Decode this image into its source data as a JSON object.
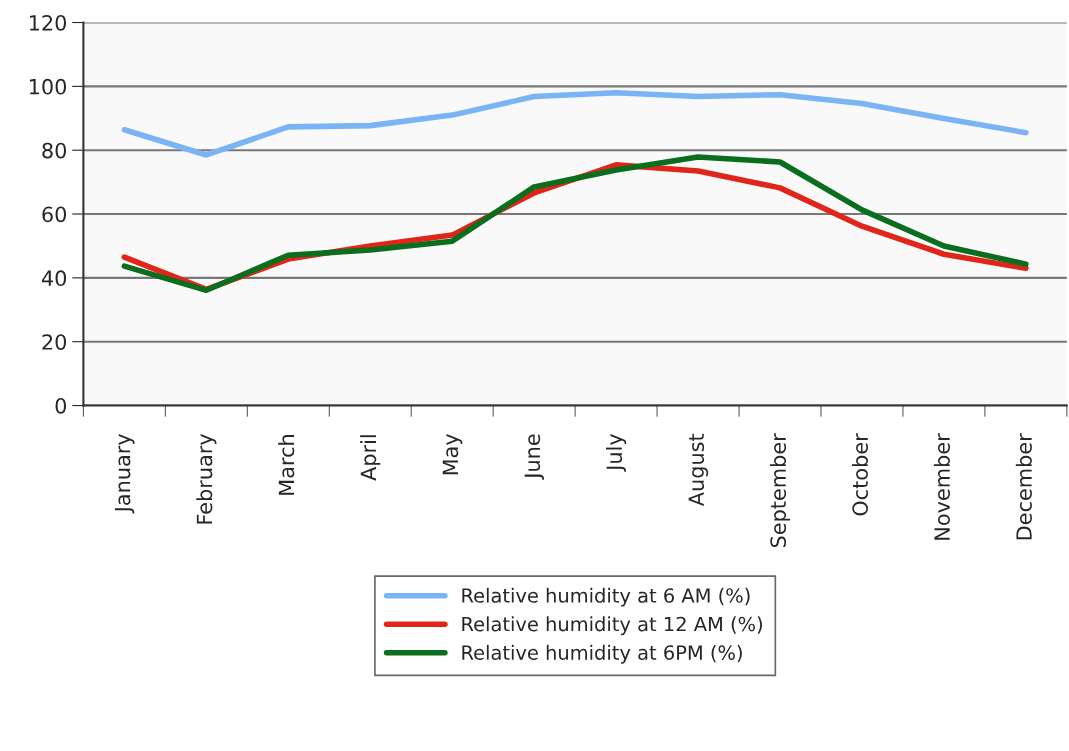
{
  "chart_data": {
    "type": "line",
    "categories": [
      "January",
      "February",
      "March",
      "April",
      "May",
      "June",
      "July",
      "August",
      "September",
      "October",
      "November",
      "December"
    ],
    "series": [
      {
        "name": "Relative humidity at 6 AM (%)",
        "color": "#7ab4f5",
        "values": [
          86.4,
          78.5,
          87.3,
          87.7,
          91,
          96.8,
          98,
          96.8,
          97.4,
          94.6,
          89.9,
          85.5
        ]
      },
      {
        "name": "Relative humidity at 12 AM (%)",
        "color": "#e0261a",
        "values": [
          46.5,
          36.4,
          45.9,
          50,
          53.4,
          66.6,
          75.4,
          73.5,
          68.2,
          56.2,
          47.4,
          43
        ]
      },
      {
        "name": "Relative humidity at 6PM (%)",
        "color": "#0a6e1e",
        "values": [
          43.7,
          36.1,
          47.1,
          48.7,
          51.5,
          68.5,
          73.8,
          77.9,
          76.3,
          61.3,
          50,
          44.3
        ]
      }
    ],
    "ylim": [
      0,
      120
    ],
    "yticks": [
      0,
      20,
      40,
      60,
      80,
      100,
      120
    ],
    "grid": "y",
    "legend": "bottom",
    "marker": "none",
    "line_style": "solid"
  }
}
